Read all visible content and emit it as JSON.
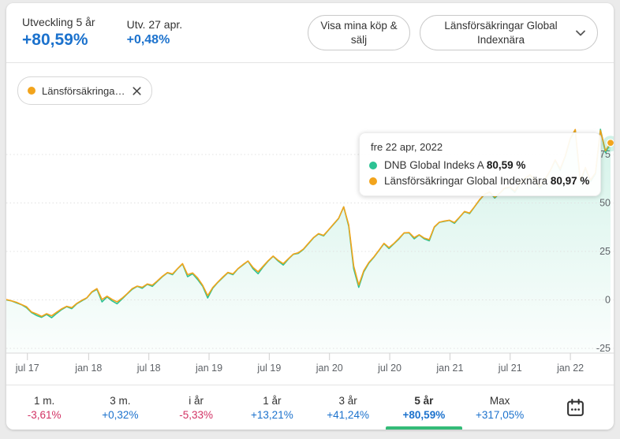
{
  "colors": {
    "accent_blue": "#1c72cd",
    "negative_pink": "#d23264",
    "series_green": "#2cc293",
    "series_orange": "#f2a41c",
    "selected_underline_green": "#34bb78",
    "axis_label_gray": "#5f6368",
    "card_background": "#ffffff",
    "page_background": "#ebebeb"
  },
  "header": {
    "stats": [
      {
        "label": "Utveckling 5 år",
        "value": "+80,59%"
      },
      {
        "label": "Utv. 27 apr.",
        "value": "+0,48%"
      }
    ],
    "show_trades_button": "Visa mina köp & sälj",
    "fund_selector_button": "Länsförsäkringar Global Indexnära"
  },
  "chip": {
    "label": "Länsförsäkringa…",
    "dot_color": "#f2a41c"
  },
  "tooltip": {
    "date": "fre 22 apr, 2022",
    "rows": [
      {
        "name": "DNB Global Indeks A",
        "value": "80,59 %",
        "color": "#2cc293"
      },
      {
        "name": "Länsförsäkringar Global Indexnära",
        "value": "80,97 %",
        "color": "#f2a41c"
      }
    ]
  },
  "chart_data": {
    "type": "line",
    "title": "Fondutveckling 5 år, procent",
    "x_axis": {
      "start": "apr 2017",
      "end": "apr 2022",
      "total_months": 60.2,
      "ticks": [
        {
          "label": "jul 17",
          "month": 2.1
        },
        {
          "label": "jan 18",
          "month": 8.2
        },
        {
          "label": "jul 18",
          "month": 14.2
        },
        {
          "label": "jan 19",
          "month": 20.2
        },
        {
          "label": "jul 19",
          "month": 26.2
        },
        {
          "label": "jan 20",
          "month": 32.2
        },
        {
          "label": "jul 20",
          "month": 38.2
        },
        {
          "label": "jan 21",
          "month": 44.2
        },
        {
          "label": "jul 21",
          "month": 50.2
        },
        {
          "label": "jan 22",
          "month": 56.2
        }
      ]
    },
    "y_axis": {
      "unit": "%",
      "ticks": [
        75,
        50,
        25,
        0,
        -25
      ],
      "ylim": [
        -30,
        122
      ],
      "gridlines": "dotted",
      "labels_position": "right"
    },
    "sampling": "121 points evenly spaced 2017-04-27 → 2022-04-27",
    "series": [
      {
        "name": "DNB Global Indeks A",
        "color": "#2cc293",
        "area_fill": true,
        "values": [
          0,
          -0.5,
          -1.5,
          -2.5,
          -4.0,
          -6.5,
          -8.0,
          -9.0,
          -7.5,
          -9.2,
          -7.0,
          -5.0,
          -3.5,
          -4.5,
          -2.0,
          -0.5,
          1.0,
          4.0,
          5.5,
          -1.0,
          1.5,
          -0.5,
          -2.0,
          0.5,
          3.0,
          5.5,
          7.0,
          6.0,
          8.0,
          7.0,
          9.5,
          12.0,
          14.0,
          13.0,
          16.0,
          18.5,
          12.0,
          13.5,
          10.5,
          7.0,
          1.0,
          6.0,
          9.0,
          11.5,
          14.0,
          13.0,
          16.0,
          18.0,
          20.0,
          16.0,
          13.5,
          17.0,
          20.0,
          22.5,
          20.0,
          18.0,
          21.0,
          23.5,
          24.0,
          26.0,
          29.0,
          32.0,
          34.0,
          33.0,
          36.0,
          39.0,
          42.0,
          48.0,
          38.0,
          16.0,
          6.5,
          14.5,
          19.0,
          22.0,
          25.5,
          29.0,
          26.5,
          29.0,
          31.5,
          34.5,
          34.5,
          31.5,
          33.5,
          31.5,
          30.5,
          37.5,
          40.0,
          40.5,
          41.0,
          39.5,
          42.5,
          45.5,
          44.5,
          48.0,
          51.5,
          54.5,
          55.5,
          52.5,
          55.0,
          57.5,
          58.0,
          55.5,
          60.0,
          62.5,
          64.5,
          61.5,
          57.5,
          62.0,
          66.5,
          72.0,
          67.0,
          74.0,
          83.0,
          87.5,
          60.5,
          68.0,
          61.0,
          65.0,
          88.0,
          76.0,
          80.6
        ]
      },
      {
        "name": "Länsförsäkringar Global Indexnära",
        "color": "#f2a41c",
        "area_fill": false,
        "values": [
          0.2,
          -0.5,
          -1.2,
          -2.4,
          -3.5,
          -6.2,
          -7.2,
          -8.5,
          -7.1,
          -8.2,
          -6.4,
          -4.6,
          -3.3,
          -4.0,
          -1.8,
          -0.2,
          1.1,
          4.2,
          5.8,
          0.2,
          1.9,
          0.3,
          -1.0,
          0.9,
          3.2,
          5.8,
          7.1,
          6.5,
          8.2,
          7.6,
          9.8,
          12.2,
          14.1,
          13.4,
          16.1,
          18.7,
          13.0,
          13.9,
          11.3,
          7.5,
          2.2,
          6.4,
          9.2,
          11.8,
          14.2,
          13.4,
          16.1,
          18.2,
          20.1,
          16.7,
          14.5,
          17.4,
          20.2,
          22.6,
          20.4,
          18.7,
          21.2,
          23.6,
          24.3,
          26.2,
          29.2,
          32.1,
          34.2,
          33.3,
          36.1,
          39.2,
          42.1,
          48.0,
          38.7,
          17.5,
          7.7,
          15.1,
          19.3,
          22.2,
          25.6,
          29.2,
          27.0,
          29.2,
          31.8,
          34.6,
          34.7,
          32.1,
          33.6,
          31.9,
          31.1,
          37.7,
          40.1,
          40.7,
          41.1,
          39.9,
          42.7,
          45.6,
          44.8,
          48.1,
          51.7,
          54.5,
          55.7,
          53.0,
          55.1,
          57.7,
          58.3,
          56.1,
          60.1,
          62.7,
          64.5,
          61.8,
          58.3,
          62.3,
          66.6,
          72.2,
          67.6,
          74.2,
          83.3,
          87.9,
          61.5,
          68.3,
          61.8,
          65.5,
          87.4,
          76.9,
          81.0
        ]
      }
    ],
    "hover_point": {
      "date": "fre 22 apr, 2022",
      "series_values_pct": [
        80.59,
        80.97
      ]
    }
  },
  "periods": [
    {
      "label": "1 m.",
      "value": "-3,61%",
      "trend": "down",
      "selected": false
    },
    {
      "label": "3 m.",
      "value": "+0,32%",
      "trend": "up",
      "selected": false
    },
    {
      "label": "i år",
      "value": "-5,33%",
      "trend": "down",
      "selected": false
    },
    {
      "label": "1 år",
      "value": "+13,21%",
      "trend": "up",
      "selected": false
    },
    {
      "label": "3 år",
      "value": "+41,24%",
      "trend": "up",
      "selected": false
    },
    {
      "label": "5 år",
      "value": "+80,59%",
      "trend": "up",
      "selected": true
    },
    {
      "label": "Max",
      "value": "+317,05%",
      "trend": "up",
      "selected": false
    }
  ]
}
